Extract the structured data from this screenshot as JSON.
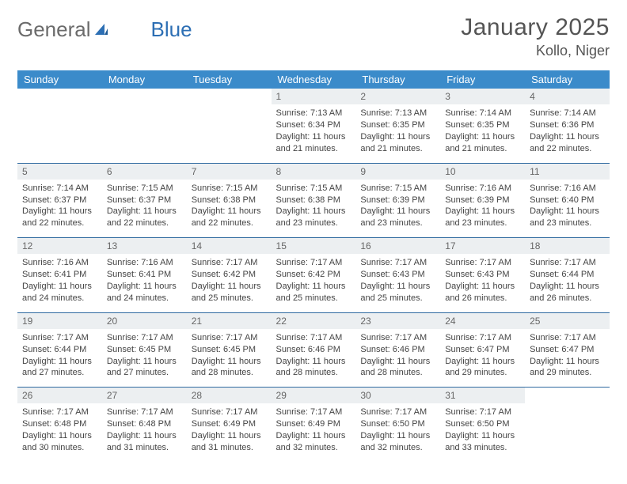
{
  "brand": {
    "part1": "General",
    "part2": "Blue"
  },
  "title": {
    "month": "January 2025",
    "location": "Kollo, Niger"
  },
  "colors": {
    "header_bg": "#3b8bca",
    "header_text": "#ffffff",
    "row_border": "#2f6aa0",
    "daynum_bg": "#eceff1",
    "brand_gray": "#6b6b6b",
    "brand_blue": "#2d6fb4"
  },
  "weekdays": [
    "Sunday",
    "Monday",
    "Tuesday",
    "Wednesday",
    "Thursday",
    "Friday",
    "Saturday"
  ],
  "weeks": [
    [
      null,
      null,
      null,
      {
        "n": "1",
        "sr": "7:13 AM",
        "ss": "6:34 PM",
        "h": "11",
        "m": "21"
      },
      {
        "n": "2",
        "sr": "7:13 AM",
        "ss": "6:35 PM",
        "h": "11",
        "m": "21"
      },
      {
        "n": "3",
        "sr": "7:14 AM",
        "ss": "6:35 PM",
        "h": "11",
        "m": "21"
      },
      {
        "n": "4",
        "sr": "7:14 AM",
        "ss": "6:36 PM",
        "h": "11",
        "m": "22"
      }
    ],
    [
      {
        "n": "5",
        "sr": "7:14 AM",
        "ss": "6:37 PM",
        "h": "11",
        "m": "22"
      },
      {
        "n": "6",
        "sr": "7:15 AM",
        "ss": "6:37 PM",
        "h": "11",
        "m": "22"
      },
      {
        "n": "7",
        "sr": "7:15 AM",
        "ss": "6:38 PM",
        "h": "11",
        "m": "22"
      },
      {
        "n": "8",
        "sr": "7:15 AM",
        "ss": "6:38 PM",
        "h": "11",
        "m": "23"
      },
      {
        "n": "9",
        "sr": "7:15 AM",
        "ss": "6:39 PM",
        "h": "11",
        "m": "23"
      },
      {
        "n": "10",
        "sr": "7:16 AM",
        "ss": "6:39 PM",
        "h": "11",
        "m": "23"
      },
      {
        "n": "11",
        "sr": "7:16 AM",
        "ss": "6:40 PM",
        "h": "11",
        "m": "23"
      }
    ],
    [
      {
        "n": "12",
        "sr": "7:16 AM",
        "ss": "6:41 PM",
        "h": "11",
        "m": "24"
      },
      {
        "n": "13",
        "sr": "7:16 AM",
        "ss": "6:41 PM",
        "h": "11",
        "m": "24"
      },
      {
        "n": "14",
        "sr": "7:17 AM",
        "ss": "6:42 PM",
        "h": "11",
        "m": "25"
      },
      {
        "n": "15",
        "sr": "7:17 AM",
        "ss": "6:42 PM",
        "h": "11",
        "m": "25"
      },
      {
        "n": "16",
        "sr": "7:17 AM",
        "ss": "6:43 PM",
        "h": "11",
        "m": "25"
      },
      {
        "n": "17",
        "sr": "7:17 AM",
        "ss": "6:43 PM",
        "h": "11",
        "m": "26"
      },
      {
        "n": "18",
        "sr": "7:17 AM",
        "ss": "6:44 PM",
        "h": "11",
        "m": "26"
      }
    ],
    [
      {
        "n": "19",
        "sr": "7:17 AM",
        "ss": "6:44 PM",
        "h": "11",
        "m": "27"
      },
      {
        "n": "20",
        "sr": "7:17 AM",
        "ss": "6:45 PM",
        "h": "11",
        "m": "27"
      },
      {
        "n": "21",
        "sr": "7:17 AM",
        "ss": "6:45 PM",
        "h": "11",
        "m": "28"
      },
      {
        "n": "22",
        "sr": "7:17 AM",
        "ss": "6:46 PM",
        "h": "11",
        "m": "28"
      },
      {
        "n": "23",
        "sr": "7:17 AM",
        "ss": "6:46 PM",
        "h": "11",
        "m": "28"
      },
      {
        "n": "24",
        "sr": "7:17 AM",
        "ss": "6:47 PM",
        "h": "11",
        "m": "29"
      },
      {
        "n": "25",
        "sr": "7:17 AM",
        "ss": "6:47 PM",
        "h": "11",
        "m": "29"
      }
    ],
    [
      {
        "n": "26",
        "sr": "7:17 AM",
        "ss": "6:48 PM",
        "h": "11",
        "m": "30"
      },
      {
        "n": "27",
        "sr": "7:17 AM",
        "ss": "6:48 PM",
        "h": "11",
        "m": "31"
      },
      {
        "n": "28",
        "sr": "7:17 AM",
        "ss": "6:49 PM",
        "h": "11",
        "m": "31"
      },
      {
        "n": "29",
        "sr": "7:17 AM",
        "ss": "6:49 PM",
        "h": "11",
        "m": "32"
      },
      {
        "n": "30",
        "sr": "7:17 AM",
        "ss": "6:50 PM",
        "h": "11",
        "m": "32"
      },
      {
        "n": "31",
        "sr": "7:17 AM",
        "ss": "6:50 PM",
        "h": "11",
        "m": "33"
      },
      null
    ]
  ],
  "labels": {
    "sunrise": "Sunrise:",
    "sunset": "Sunset:",
    "daylight_prefix": "Daylight:",
    "daylight_mid": "hours and",
    "daylight_suffix": "minutes."
  }
}
